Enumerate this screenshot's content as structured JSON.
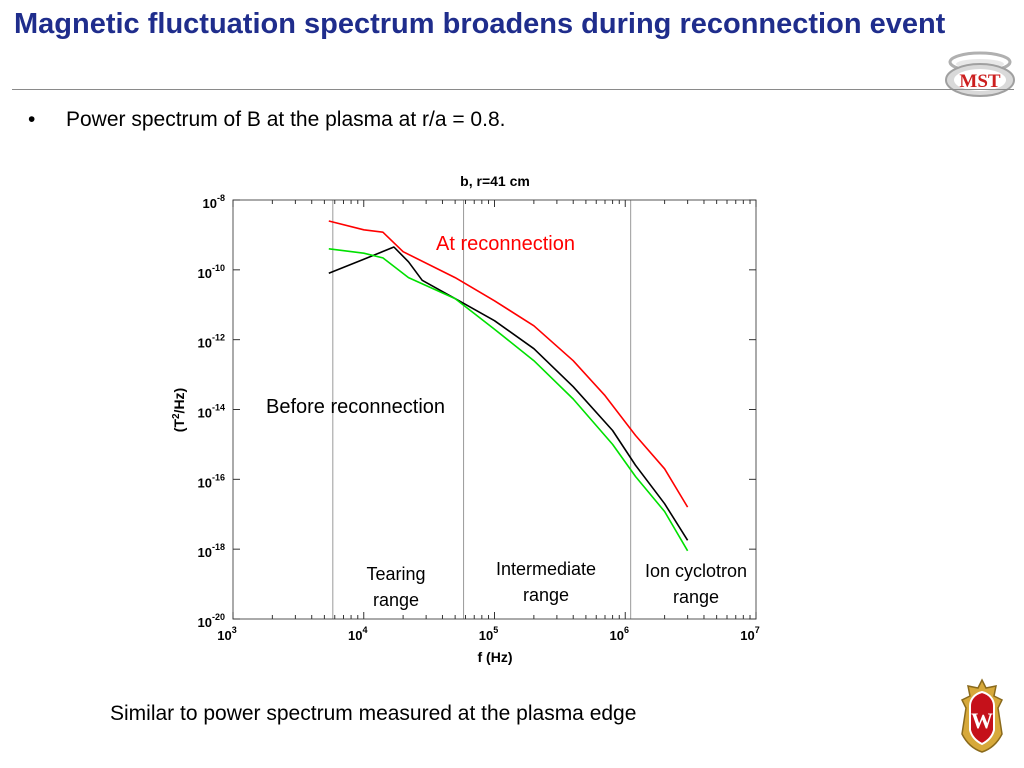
{
  "slide": {
    "title": "Magnetic fluctuation spectrum broadens during reconnection event",
    "bullet": "Power spectrum of B at the plasma at r/a = 0.8.",
    "caption": "Similar to power spectrum measured at the plasma edge",
    "logo_top": {
      "text": "MST",
      "icon": "mst-logo-icon"
    },
    "logo_bottom": {
      "text": "W",
      "icon": "uw-crest-icon"
    }
  },
  "chart_data": {
    "type": "line",
    "title": "b, r=41 cm",
    "xlabel": "f (Hz)",
    "ylabel_base": "(T",
    "ylabel_sup": "2",
    "ylabel_tail": "/Hz)",
    "x_scale": "log",
    "y_scale": "log",
    "xlim": [
      1000,
      10000000
    ],
    "ylim": [
      1e-20,
      1e-08
    ],
    "x_ticks": [
      {
        "value": 1000,
        "base": "10",
        "exp": "3"
      },
      {
        "value": 10000,
        "base": "10",
        "exp": "4"
      },
      {
        "value": 100000,
        "base": "10",
        "exp": "5"
      },
      {
        "value": 1000000,
        "base": "10",
        "exp": "6"
      },
      {
        "value": 10000000,
        "base": "10",
        "exp": "7"
      }
    ],
    "y_ticks": [
      {
        "value": 1e-08,
        "base": "10",
        "exp": "-8"
      },
      {
        "value": 1e-10,
        "base": "10",
        "exp": "-10"
      },
      {
        "value": 1e-12,
        "base": "10",
        "exp": "-12"
      },
      {
        "value": 1e-14,
        "base": "10",
        "exp": "-14"
      },
      {
        "value": 1e-16,
        "base": "10",
        "exp": "-16"
      },
      {
        "value": 1e-18,
        "base": "10",
        "exp": "-18"
      },
      {
        "value": 1e-20,
        "base": "10",
        "exp": "-20"
      }
    ],
    "grid": false,
    "range_lines": [
      5800,
      58000,
      1100000
    ],
    "series": [
      {
        "color": "#ff0000",
        "points": [
          [
            5400,
            2.5e-09
          ],
          [
            10000,
            1.4e-09
          ],
          [
            14000,
            1.2e-09
          ],
          [
            20000,
            3.3e-10
          ],
          [
            50000,
            6e-11
          ],
          [
            100000,
            1.3e-11
          ],
          [
            200000,
            2.5e-12
          ],
          [
            400000,
            2.5e-13
          ],
          [
            700000,
            2.5e-14
          ],
          [
            1200000,
            1.8e-15
          ],
          [
            2000000,
            2e-16
          ],
          [
            3000000,
            1.6e-17
          ]
        ]
      },
      {
        "color": "#000000",
        "points": [
          [
            5400,
            8e-11
          ],
          [
            10000,
            2e-10
          ],
          [
            17000,
            4.5e-10
          ],
          [
            22000,
            1.7e-10
          ],
          [
            28000,
            5e-11
          ],
          [
            50000,
            1.5e-11
          ],
          [
            100000,
            3.5e-12
          ],
          [
            200000,
            5.5e-13
          ],
          [
            400000,
            4.5e-14
          ],
          [
            800000,
            2.5e-15
          ],
          [
            1200000,
            2.5e-16
          ],
          [
            2000000,
            2e-17
          ],
          [
            3000000,
            1.8e-18
          ]
        ]
      },
      {
        "color": "#00e000",
        "points": [
          [
            5400,
            4e-10
          ],
          [
            10000,
            3e-10
          ],
          [
            14000,
            2.2e-10
          ],
          [
            22000,
            6e-11
          ],
          [
            50000,
            1.5e-11
          ],
          [
            100000,
            2e-12
          ],
          [
            200000,
            2.5e-13
          ],
          [
            400000,
            2e-14
          ],
          [
            800000,
            1e-15
          ],
          [
            1200000,
            1.2e-16
          ],
          [
            2000000,
            1.2e-17
          ],
          [
            3000000,
            9e-19
          ]
        ]
      }
    ],
    "annotations": {
      "at_reconnection": {
        "text": "At reconnection",
        "color": "#ff0000"
      },
      "before_reconnection": {
        "text": "Before reconnection",
        "color": "#000000"
      },
      "tearing": {
        "line1": "Tearing",
        "line2": "range"
      },
      "intermediate": {
        "line1": "Intermediate",
        "line2": "range"
      },
      "ion_cyclotron": {
        "line1": "Ion cyclotron",
        "line2": "range"
      }
    }
  }
}
